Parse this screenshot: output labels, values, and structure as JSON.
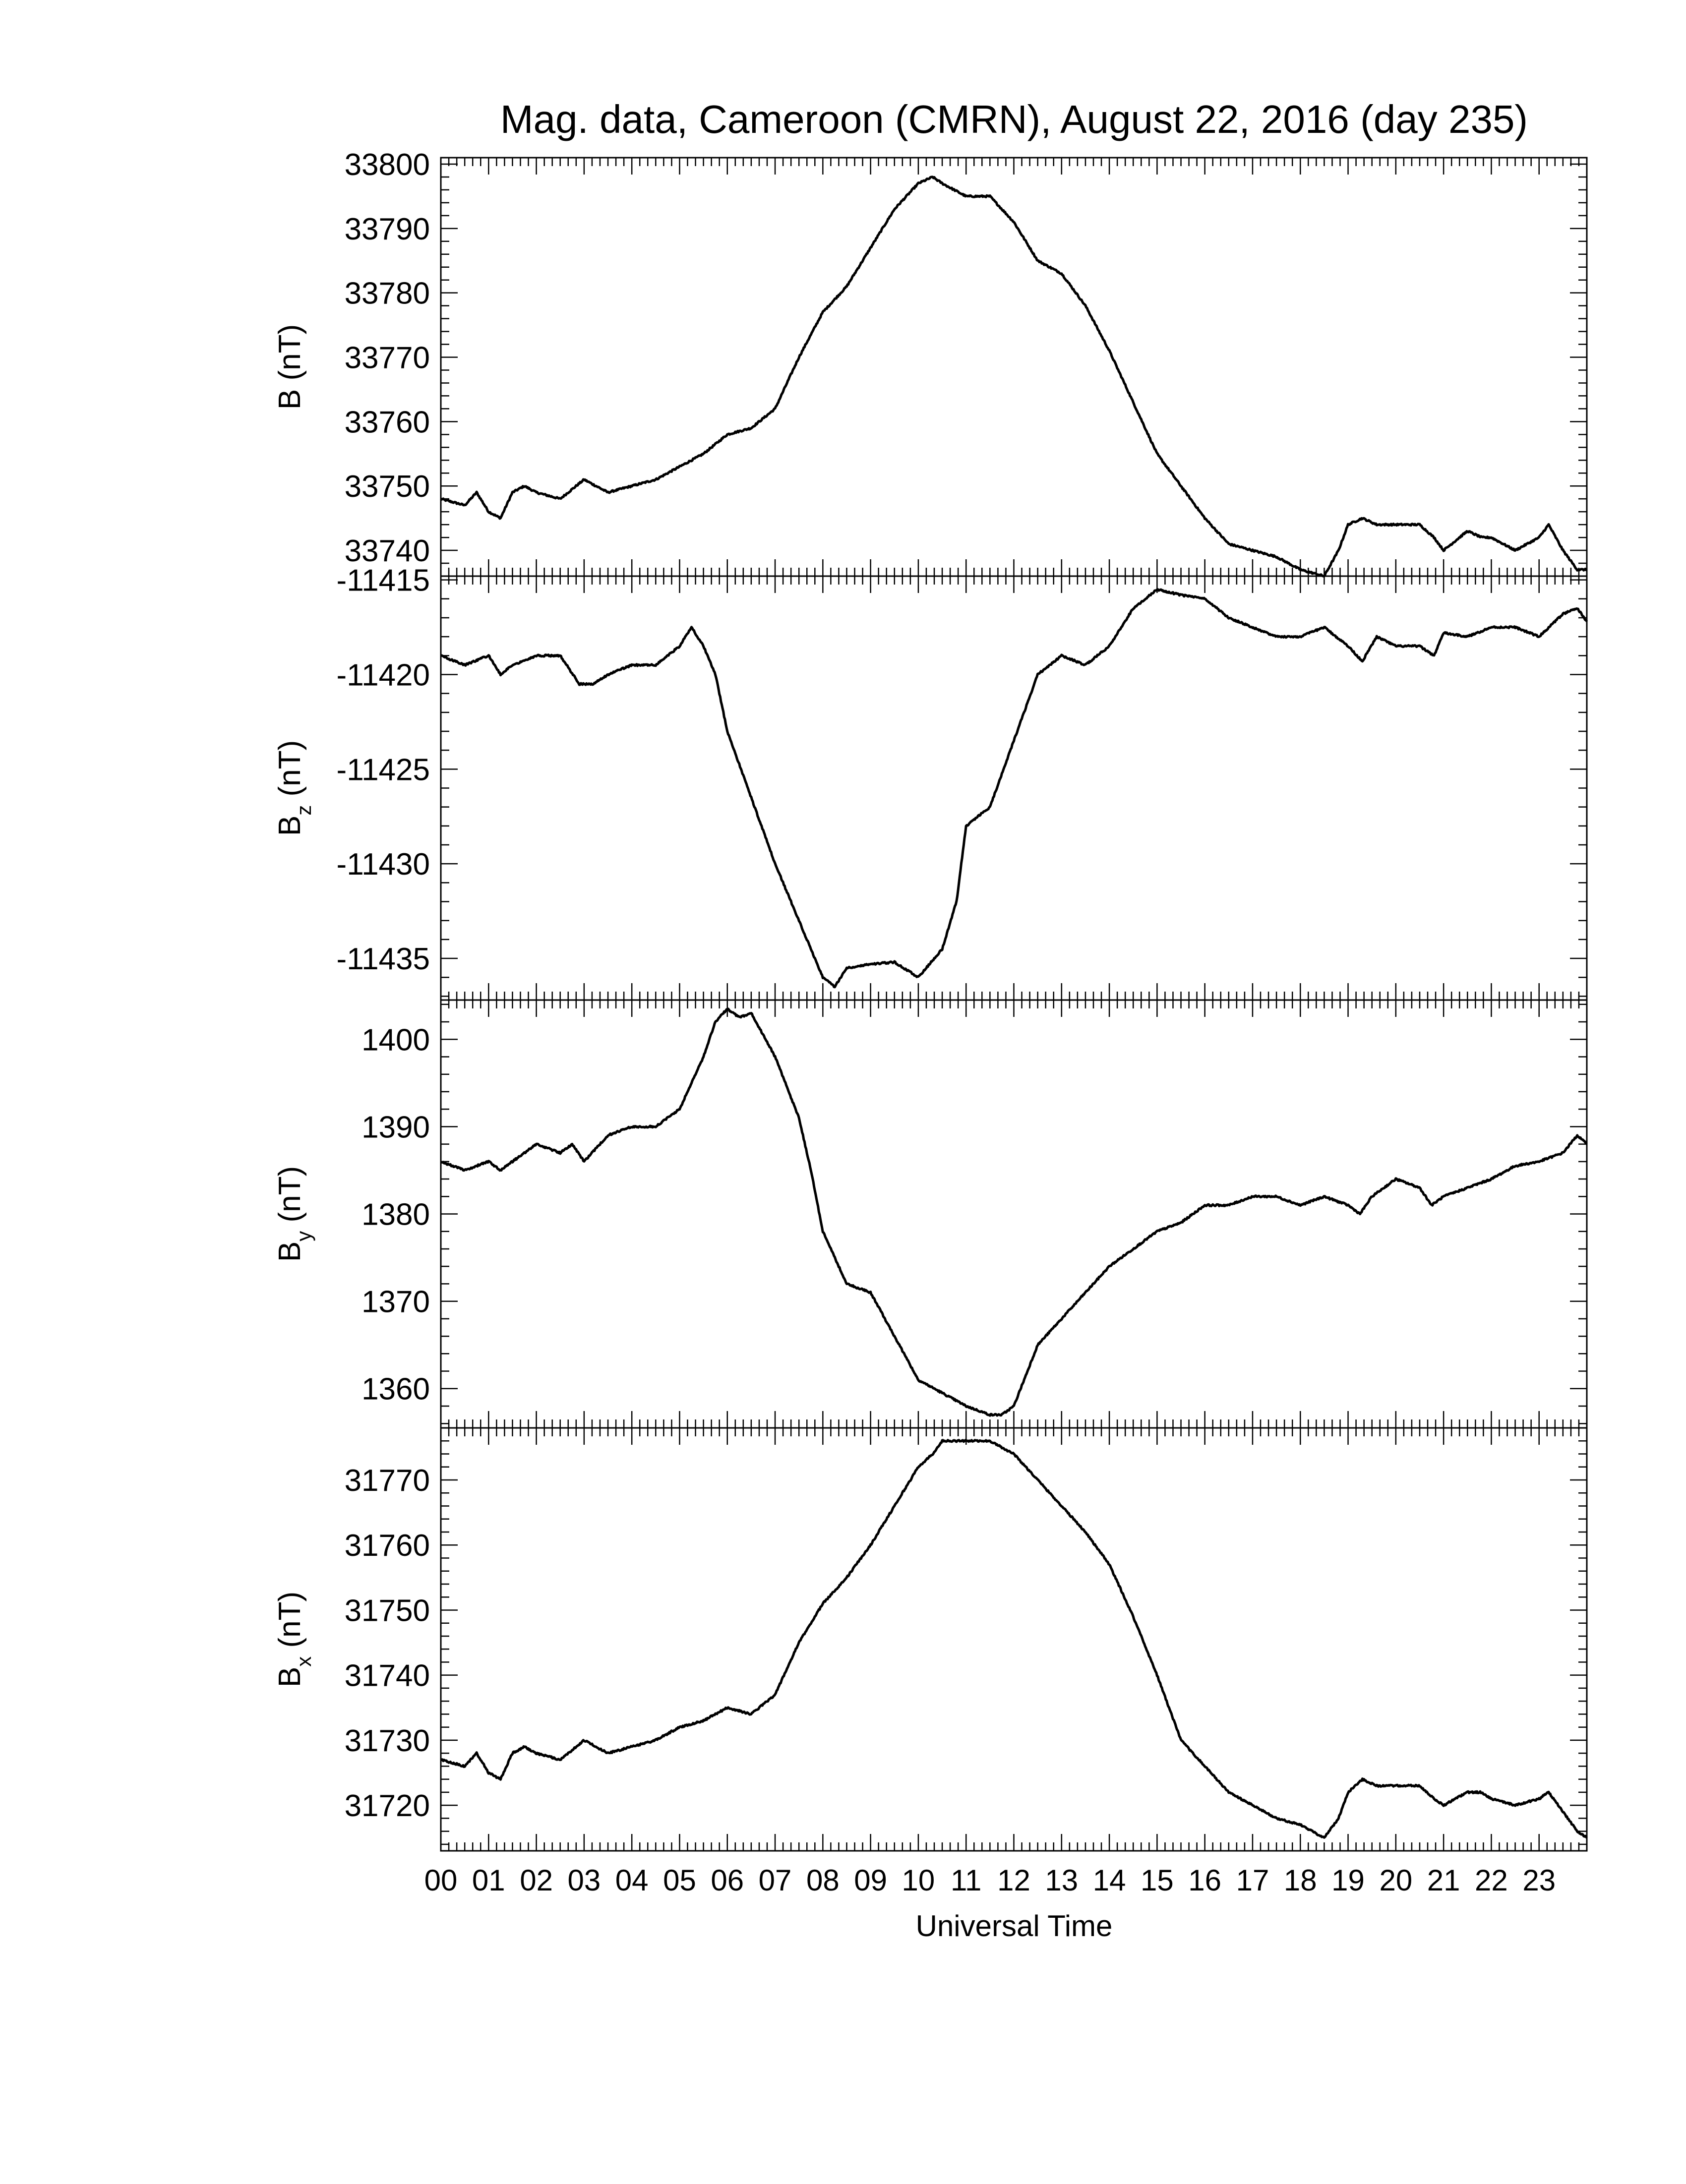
{
  "title": "Mag. data, Cameroon (CMRN), August 22, 2016 (day 235)",
  "xlabel": "Universal Time",
  "x_tick_labels": [
    "00",
    "01",
    "02",
    "03",
    "04",
    "05",
    "06",
    "07",
    "08",
    "09",
    "10",
    "11",
    "12",
    "13",
    "14",
    "15",
    "16",
    "17",
    "18",
    "19",
    "20",
    "21",
    "22",
    "23"
  ],
  "colors": {
    "line": "#000000",
    "axes": "#000000",
    "background": "#ffffff"
  },
  "chart_data": [
    {
      "type": "line",
      "ylabel_main": "B",
      "ylabel_sub": "",
      "ylabel_unit": "(nT)",
      "ylim": [
        33736,
        33801
      ],
      "yticks": [
        33740,
        33750,
        33760,
        33770,
        33780,
        33790,
        33800
      ],
      "xlim": [
        0,
        24
      ],
      "series": [
        {
          "x": [
            0,
            0.5,
            0.75,
            1.0,
            1.25,
            1.5,
            1.75,
            2.0,
            2.5,
            3.0,
            3.25,
            3.5,
            4.0,
            4.5,
            5.0,
            5.5,
            6.0,
            6.5,
            7.0,
            7.5,
            8.0,
            8.5,
            9.0,
            9.5,
            10.0,
            10.3,
            10.5,
            11.0,
            11.5,
            12.0,
            12.5,
            13.0,
            13.5,
            14.0,
            14.5,
            15.0,
            15.5,
            16.0,
            16.5,
            17.0,
            17.5,
            18.0,
            18.5,
            18.8,
            19.0,
            19.3,
            19.6,
            20.0,
            20.5,
            20.8,
            21.0,
            21.5,
            21.8,
            22.0,
            22.5,
            23.0,
            23.2,
            23.5,
            23.8,
            24.0
          ],
          "y": [
            33748,
            33747,
            33749,
            33746,
            33745,
            33749,
            33750,
            33749,
            33748,
            33751,
            33750,
            33749,
            33750,
            33751,
            33753,
            33755,
            33758,
            33759,
            33762,
            33770,
            33777,
            33781,
            33787,
            33793,
            33797,
            33798,
            33797,
            33795,
            33795,
            33791,
            33785,
            33783,
            33778,
            33771,
            33763,
            33755,
            33750,
            33745,
            33741,
            33740,
            33739,
            33737,
            33736,
            33740,
            33744,
            33745,
            33744,
            33744,
            33744,
            33742,
            33740,
            33743,
            33742,
            33742,
            33740,
            33742,
            33744,
            33740,
            33737,
            33737
          ]
        }
      ]
    },
    {
      "type": "line",
      "ylabel_main": "B",
      "ylabel_sub": "z",
      "ylabel_unit": "(nT)",
      "ylim": [
        -11437.2,
        -11414.8
      ],
      "yticks": [
        -11415,
        -11420,
        -11425,
        -11430,
        -11435
      ],
      "xlim": [
        0,
        24
      ],
      "series": [
        {
          "x": [
            0,
            0.5,
            1.0,
            1.25,
            1.5,
            2.0,
            2.5,
            2.9,
            3.2,
            3.5,
            4.0,
            4.5,
            5.0,
            5.25,
            5.5,
            5.75,
            6.0,
            6.5,
            7.0,
            7.5,
            8.0,
            8.25,
            8.5,
            9.0,
            9.5,
            10.0,
            10.5,
            10.8,
            11.0,
            11.5,
            12.0,
            12.5,
            13.0,
            13.5,
            14.0,
            14.5,
            15.0,
            15.5,
            16.0,
            16.5,
            17.0,
            17.5,
            18.0,
            18.5,
            19.0,
            19.3,
            19.6,
            20.0,
            20.5,
            20.8,
            21.0,
            21.5,
            22.0,
            22.5,
            23.0,
            23.5,
            23.8,
            24.0
          ],
          "y": [
            -11419,
            -11419.5,
            -11419,
            -11420,
            -11419.5,
            -11419,
            -11419,
            -11420.5,
            -11420.5,
            -11420,
            -11419.5,
            -11419.5,
            -11418.5,
            -11417.5,
            -11418.5,
            -11420,
            -11423,
            -11426.5,
            -11430,
            -11433,
            -11436,
            -11436.5,
            -11435.5,
            -11435.3,
            -11435.2,
            -11436,
            -11434.5,
            -11432,
            -11428,
            -11427,
            -11423.5,
            -11420,
            -11419,
            -11419.5,
            -11418.5,
            -11416.5,
            -11415.5,
            -11415.8,
            -11416,
            -11417,
            -11417.5,
            -11418,
            -11418,
            -11417.5,
            -11418.5,
            -11419.3,
            -11418,
            -11418.5,
            -11418.5,
            -11419,
            -11417.8,
            -11418,
            -11417.5,
            -11417.5,
            -11418,
            -11416.8,
            -11416.5,
            -11417.2
          ]
        }
      ]
    },
    {
      "type": "line",
      "ylabel_main": "B",
      "ylabel_sub": "y",
      "ylabel_unit": "(nT)",
      "ylim": [
        1355.5,
        1404.5
      ],
      "yticks": [
        1360,
        1370,
        1380,
        1390,
        1400
      ],
      "xlim": [
        0,
        24
      ],
      "series": [
        {
          "x": [
            0,
            0.5,
            1.0,
            1.25,
            1.5,
            2.0,
            2.5,
            2.75,
            3.0,
            3.5,
            4.0,
            4.5,
            5.0,
            5.5,
            5.75,
            6.0,
            6.25,
            6.5,
            7.0,
            7.5,
            7.75,
            8.0,
            8.5,
            9.0,
            9.5,
            10.0,
            10.5,
            11.0,
            11.5,
            11.75,
            12.0,
            12.5,
            13.0,
            13.5,
            14.0,
            14.5,
            15.0,
            15.5,
            16.0,
            16.5,
            17.0,
            17.5,
            18.0,
            18.5,
            19.0,
            19.25,
            19.5,
            20.0,
            20.5,
            20.75,
            21.0,
            21.5,
            22.0,
            22.5,
            23.0,
            23.5,
            23.8,
            24.0
          ],
          "y": [
            1386,
            1385,
            1386,
            1385,
            1386,
            1388,
            1387,
            1388,
            1386,
            1389,
            1390,
            1390,
            1392,
            1398,
            1402,
            1403.5,
            1402.5,
            1403,
            1398,
            1391,
            1385,
            1378,
            1372,
            1371,
            1366,
            1361,
            1359.5,
            1358,
            1357,
            1357,
            1358,
            1365,
            1368,
            1371,
            1374,
            1376,
            1378,
            1379,
            1381,
            1381,
            1382,
            1382,
            1381,
            1382,
            1381,
            1380,
            1382,
            1384,
            1383,
            1381,
            1382,
            1383,
            1384,
            1385.5,
            1386,
            1387,
            1389,
            1388
          ]
        }
      ]
    },
    {
      "type": "line",
      "ylabel_main": "B",
      "ylabel_sub": "x",
      "ylabel_unit": "(nT)",
      "ylim": [
        31713,
        31778
      ],
      "yticks": [
        31720,
        31730,
        31740,
        31750,
        31760,
        31770
      ],
      "xlim": [
        0,
        24
      ],
      "series": [
        {
          "x": [
            0,
            0.5,
            0.75,
            1.0,
            1.25,
            1.5,
            1.75,
            2.0,
            2.5,
            3.0,
            3.25,
            3.5,
            4.0,
            4.5,
            5.0,
            5.5,
            6.0,
            6.5,
            7.0,
            7.5,
            8.0,
            8.5,
            9.0,
            9.5,
            10.0,
            10.3,
            10.5,
            11.0,
            11.5,
            12.0,
            12.5,
            13.0,
            13.5,
            14.0,
            14.5,
            15.0,
            15.5,
            16.0,
            16.5,
            17.0,
            17.5,
            18.0,
            18.5,
            18.8,
            19.0,
            19.3,
            19.6,
            20.0,
            20.5,
            20.8,
            21.0,
            21.5,
            21.8,
            22.0,
            22.5,
            23.0,
            23.2,
            23.5,
            23.8,
            24.0
          ],
          "y": [
            31727,
            31726,
            31728,
            31725,
            31724,
            31728,
            31729,
            31728,
            31727,
            31730,
            31729,
            31728,
            31729,
            31730,
            31732,
            31733,
            31735,
            31734,
            31737,
            31745,
            31751,
            31755,
            31760,
            31766,
            31772,
            31774,
            31776,
            31776,
            31776,
            31774,
            31770,
            31766,
            31762,
            31757,
            31749,
            31740,
            31730,
            31726,
            31722,
            31720,
            31718,
            31717,
            31715,
            31718,
            31722,
            31724,
            31723,
            31723,
            31723,
            31721,
            31720,
            31722,
            31722,
            31721,
            31720,
            31721,
            31722,
            31719,
            31716,
            31715
          ]
        }
      ]
    }
  ]
}
